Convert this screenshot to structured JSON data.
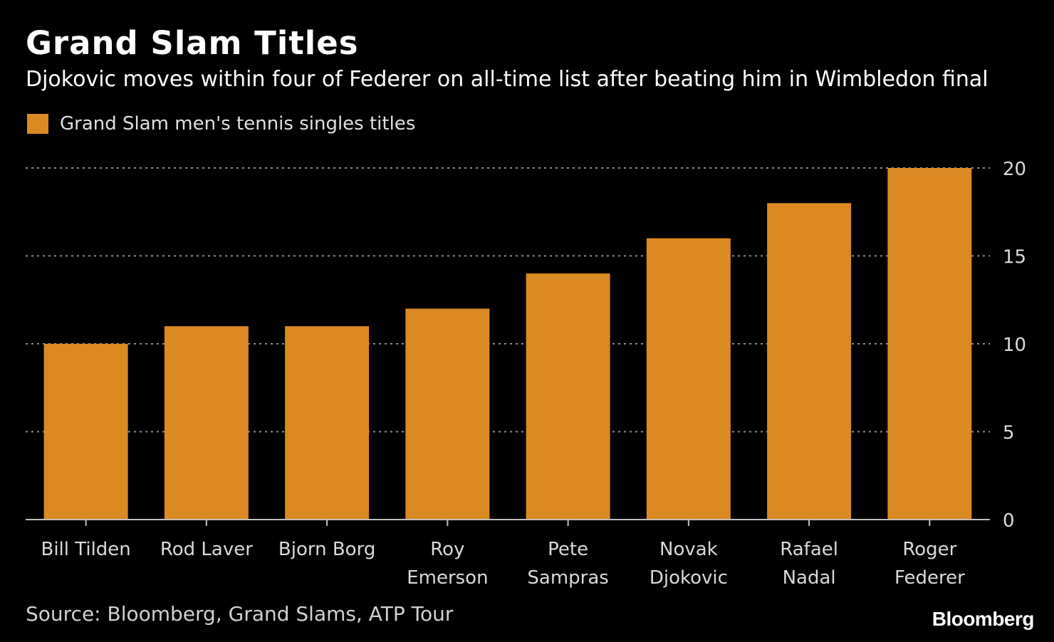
{
  "colors": {
    "background": "#000000",
    "bar": "#DB8923",
    "grid": "#8a8a8a",
    "text": "#ffffff",
    "axis_text": "#d9d9d9"
  },
  "header": {
    "title": "Grand Slam Titles",
    "subtitle": "Djokovic moves within four of Federer on all-time list after beating him in Wimbledon final"
  },
  "legend": {
    "label": "Grand Slam men's tennis singles titles"
  },
  "footer": {
    "source": "Source: Bloomberg, Grand Slams, ATP Tour",
    "brand": "Bloomberg"
  },
  "chart_data": {
    "type": "bar",
    "title": "Grand Slam Titles",
    "subtitle": "Djokovic moves within four of Federer on all-time list after beating him in Wimbledon final",
    "categories": [
      [
        "Bill Tilden"
      ],
      [
        "Rod Laver"
      ],
      [
        "Bjorn Borg"
      ],
      [
        "Roy",
        "Emerson"
      ],
      [
        "Pete",
        "Sampras"
      ],
      [
        "Novak",
        "Djokovic"
      ],
      [
        "Rafael",
        "Nadal"
      ],
      [
        "Roger",
        "Federer"
      ]
    ],
    "series": [
      {
        "name": "Grand Slam men's tennis singles titles",
        "values": [
          10,
          11,
          11,
          12,
          14,
          16,
          18,
          20
        ]
      }
    ],
    "ylim": [
      0,
      20
    ],
    "yticks": [
      0,
      5,
      10,
      15,
      20
    ],
    "y_axis_side": "right",
    "grid": "horizontal dotted",
    "legend_position": "top-left",
    "xlabel": "",
    "ylabel": ""
  }
}
